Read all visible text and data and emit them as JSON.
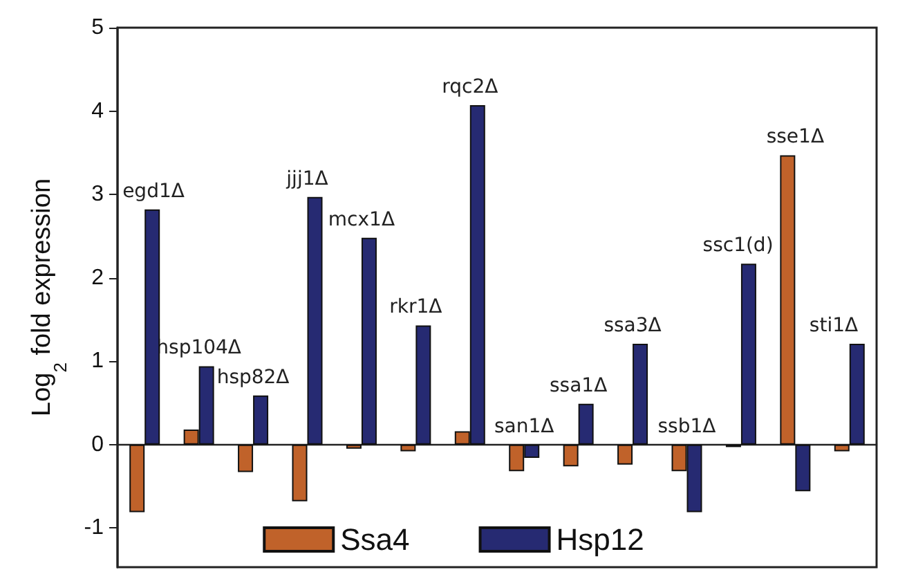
{
  "chart_data": {
    "type": "bar",
    "ylabel": "Log$_{2}$ fold expression",
    "categories": [
      "egd1Δ",
      "hsp104Δ",
      "hsp82Δ",
      "jjj1Δ",
      "mcx1Δ",
      "rkr1Δ",
      "rqc2Δ",
      "san1Δ",
      "ssa1Δ",
      "ssa3Δ",
      "ssb1Δ",
      "ssc1(d)",
      "sse1Δ",
      "sti1Δ"
    ],
    "series": [
      {
        "name": "Ssa4",
        "color": "#c0622a",
        "values": [
          -0.81,
          0.18,
          -0.33,
          -0.68,
          -0.05,
          -0.08,
          0.16,
          -0.32,
          -0.26,
          -0.24,
          -0.32,
          -0.03,
          3.47,
          -0.08
        ]
      },
      {
        "name": "Hsp12",
        "color": "#262a72",
        "values": [
          2.82,
          0.94,
          0.59,
          2.97,
          2.48,
          1.43,
          4.07,
          -0.16,
          0.49,
          1.21,
          -0.81,
          2.17,
          -0.56,
          1.21
        ]
      }
    ],
    "ylim": [
      -1.47,
      5
    ],
    "yticks": [
      -1,
      0,
      1,
      2,
      3,
      4,
      5
    ],
    "grid": false,
    "legend": "bottom",
    "tick_labels": "y"
  }
}
